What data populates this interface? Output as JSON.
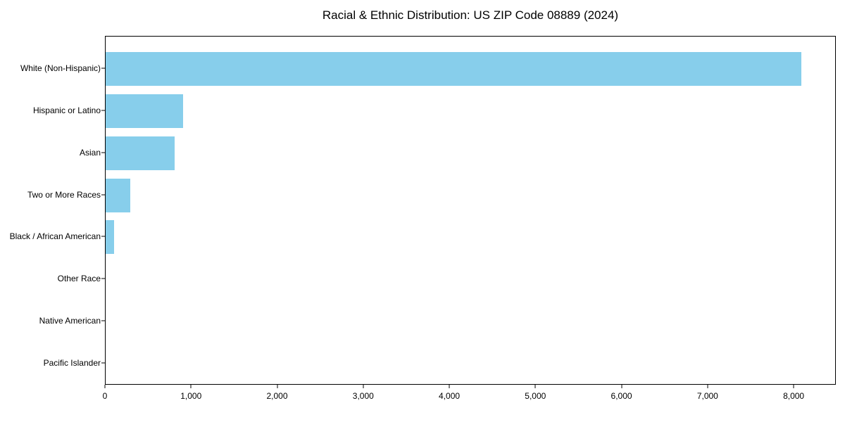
{
  "chart_data": {
    "type": "bar",
    "orientation": "horizontal",
    "title": "Racial & Ethnic Distribution: US ZIP Code 08889 (2024)",
    "categories": [
      "White (Non-Hispanic)",
      "Hispanic or Latino",
      "Asian",
      "Two or More Races",
      "Black / African American",
      "Other Race",
      "Native American",
      "Pacific Islander"
    ],
    "values": [
      8080,
      900,
      800,
      290,
      100,
      0,
      0,
      0
    ],
    "xlabel": "",
    "ylabel": "",
    "xlim": [
      0,
      8490
    ],
    "xticks": [
      0,
      1000,
      2000,
      3000,
      4000,
      5000,
      6000,
      7000,
      8000
    ],
    "xtick_labels": [
      "0",
      "1,000",
      "2,000",
      "3,000",
      "4,000",
      "5,000",
      "6,000",
      "7,000",
      "8,000"
    ],
    "grid": false,
    "legend": null,
    "colors": {
      "bar": "#87CEEB",
      "axis": "#000000",
      "text": "#000000",
      "background": "#FFFFFF"
    }
  }
}
